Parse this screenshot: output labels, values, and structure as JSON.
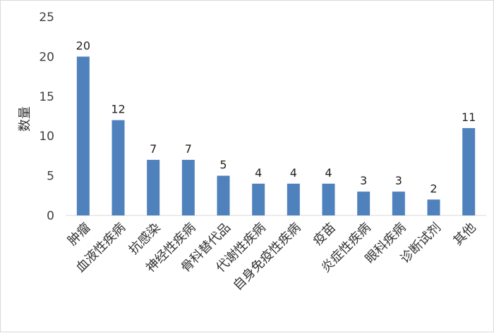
{
  "chart_data": {
    "type": "bar",
    "title": "",
    "xlabel": "",
    "ylabel": "数量",
    "ylim": [
      0,
      25
    ],
    "yticks": [
      0,
      5,
      10,
      15,
      20,
      25
    ],
    "grid": false,
    "legend": "none",
    "bar_color": "#4f81bd",
    "categories": [
      "肿瘤",
      "血液性疾病",
      "抗感染",
      "神经性疾病",
      "骨科替代品",
      "代谢性疾病",
      "自身免疫性疾病",
      "疫苗",
      "炎症性疾病",
      "眼科疾病",
      "诊断试剂",
      "其他"
    ],
    "values": [
      20,
      12,
      7,
      7,
      5,
      4,
      4,
      4,
      3,
      3,
      2,
      11
    ],
    "data_labels": [
      "20",
      "12",
      "7",
      "7",
      "5",
      "4",
      "4",
      "4",
      "3",
      "3",
      "2",
      "11"
    ]
  }
}
